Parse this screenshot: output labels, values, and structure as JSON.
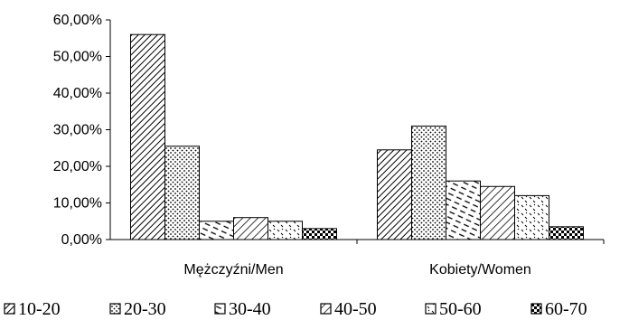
{
  "chart_data": {
    "type": "bar",
    "categories": [
      "Mężczyźni/Men",
      "Kobiety/Women"
    ],
    "series": [
      {
        "name": "10-20",
        "values": [
          56.0,
          24.5
        ]
      },
      {
        "name": "20-30",
        "values": [
          25.5,
          31.0
        ]
      },
      {
        "name": "30-40",
        "values": [
          5.0,
          16.0
        ]
      },
      {
        "name": "40-50",
        "values": [
          6.0,
          14.5
        ]
      },
      {
        "name": "50-60",
        "values": [
          5.0,
          12.0
        ]
      },
      {
        "name": "60-70",
        "values": [
          3.0,
          3.5
        ]
      }
    ],
    "yticks": [
      "0,00%",
      "10,00%",
      "20,00%",
      "30,00%",
      "40,00%",
      "50,00%",
      "60,00%"
    ],
    "ylim": [
      0,
      60
    ],
    "ytick_step": 10,
    "title": "",
    "xlabel": "",
    "ylabel": "",
    "grid": false,
    "legend_position": "bottom",
    "colors": {
      "stroke": "#000000",
      "fill": "#ffffff"
    },
    "patterns": [
      "diagonal-dense",
      "dots",
      "diagonal-dash",
      "diagonal",
      "scatter-dash",
      "checker"
    ]
  }
}
